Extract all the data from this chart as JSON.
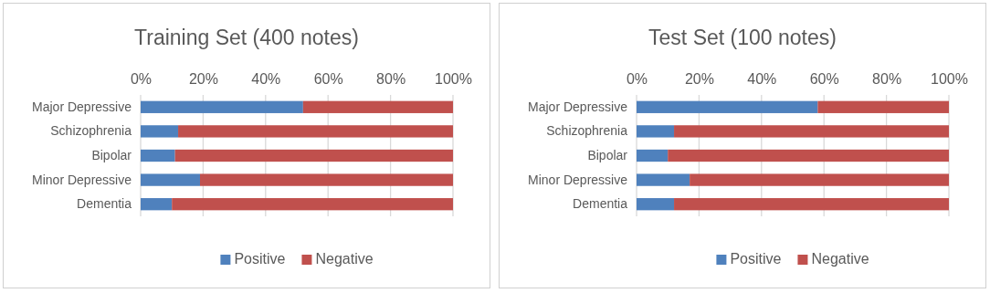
{
  "chart_data": [
    {
      "type": "bar",
      "title": "Training Set (400 notes)",
      "orientation": "horizontal",
      "stacked": true,
      "categories": [
        "Major Depressive",
        "Schizophrenia",
        "Bipolar",
        "Minor Depressive",
        "Dementia"
      ],
      "series": [
        {
          "name": "Positive",
          "color": "#4f81bd",
          "values": [
            52,
            12,
            11,
            19,
            10
          ]
        },
        {
          "name": "Negative",
          "color": "#c0504d",
          "values": [
            48,
            88,
            89,
            81,
            90
          ]
        }
      ],
      "xlim": [
        0,
        100
      ],
      "xticks": [
        {
          "value": 0,
          "label": "0%"
        },
        {
          "value": 20,
          "label": "20%"
        },
        {
          "value": 40,
          "label": "40%"
        },
        {
          "value": 60,
          "label": "60%"
        },
        {
          "value": 80,
          "label": "80%"
        },
        {
          "value": 100,
          "label": "100%"
        }
      ],
      "grid": "x",
      "legend": "bottom"
    },
    {
      "type": "bar",
      "title": "Test Set (100 notes)",
      "orientation": "horizontal",
      "stacked": true,
      "categories": [
        "Major Depressive",
        "Schizophrenia",
        "Bipolar",
        "Minor Depressive",
        "Dementia"
      ],
      "series": [
        {
          "name": "Positive",
          "color": "#4f81bd",
          "values": [
            58,
            12,
            10,
            17,
            12
          ]
        },
        {
          "name": "Negative",
          "color": "#c0504d",
          "values": [
            42,
            88,
            90,
            83,
            88
          ]
        }
      ],
      "xlim": [
        0,
        100
      ],
      "xticks": [
        {
          "value": 0,
          "label": "0%"
        },
        {
          "value": 20,
          "label": "20%"
        },
        {
          "value": 40,
          "label": "40%"
        },
        {
          "value": 60,
          "label": "60%"
        },
        {
          "value": 80,
          "label": "80%"
        },
        {
          "value": 100,
          "label": "100%"
        }
      ],
      "grid": "x",
      "legend": "bottom"
    }
  ]
}
